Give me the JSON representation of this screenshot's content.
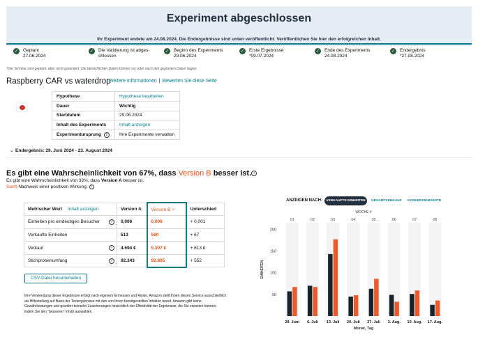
{
  "banner": {
    "title": "Experiment abgeschlossen",
    "subtitle": "Ihr Experiment endete am 24.08.2024. Die Endergebnisse sind unten veröffentlicht. Veröffentlichen Sie hier den erfolgreichen Inhalt."
  },
  "steps": [
    {
      "title": "Geplant",
      "date": "27.06.2024"
    },
    {
      "title": "Die Validierung ist abges-",
      "date": "chlossen"
    },
    {
      "title": "Beginn des Experiments",
      "date": "29.06.2024"
    },
    {
      "title": "Erste Ergebnisse",
      "date": "*09.07.2024"
    },
    {
      "title": "Ende des Experiments",
      "date": "24.08.2024"
    },
    {
      "title": "Endergebnis",
      "date": "*27.08.2024"
    }
  ],
  "note": "*Die Termine sind geplant, aber nicht garantiert. Die tatsächlichen Daten können vor oder nach den geplanten Daten liegen.",
  "experiment": {
    "title": "Raspberry CAR vs waterdrop",
    "link_more": "Weitere Informationen",
    "link_rate": "Bewerten Sie diese Seite"
  },
  "info_table": [
    {
      "key": "Hypothese",
      "value": "Hypothese bearbeiten",
      "is_link": true
    },
    {
      "key": "Dauer",
      "value": "Wichtig",
      "is_link": false
    },
    {
      "key": "Startdatum",
      "value": "29.06.2024",
      "is_link": false
    },
    {
      "key": "Inhalt des Experiments",
      "value": "Inhalt anzeigen",
      "is_link": true
    },
    {
      "key": "Experimentursprung",
      "value": "Ihre Experimente verwalten",
      "is_link": false
    }
  ],
  "final_range": "Endergebnis: 29. Juni 2024 - 23. August 2024",
  "probability": {
    "head_prefix": "Es gibt eine Wahrscheinlichkeit von 67%, dass ",
    "head_version": "Version B",
    "head_suffix": " besser ist.",
    "sub_prefix": "Es gibt eine Wahrscheinlichkeit von 33%, dass ",
    "sub_version": "Version A",
    "sub_suffix": " besser ist.",
    "sub2_soft": "Sanft",
    "sub2_rest": "-Nachweis einer positiven Wirkung."
  },
  "metrics": {
    "header": {
      "metric": "Metrischer Wert",
      "show": "Inhalt anzeigen",
      "a": "Version A",
      "b": "Version B",
      "diff": "Unterschied"
    },
    "rows": [
      {
        "name": "Einheiten pro eindeutigen Besucher",
        "a": "0,006",
        "b": "0,006",
        "diff": "+ 0,001"
      },
      {
        "name": "Verkaufte Einheiten",
        "a": "513",
        "b": "580",
        "diff": "+ 67"
      },
      {
        "name": "Verkauf",
        "a": "4.694 €",
        "b": "5.307 €",
        "diff": "+ 613 €"
      },
      {
        "name": "Stichprobenumfang",
        "a": "92.343",
        "b": "92.895",
        "diff": "+ 552"
      }
    ]
  },
  "csv_button": "CSV-Datei herunterladen",
  "disclaimer": "Ihre Verwendung dieser Ergebnisse erfolgt nach eigenem Ermessen und Risiko. Amazon stellt Ihnen diesen Service ausschließlich als Hilfestellung auf Basis der Testergebnisse mit den von Ihnen bereitgestellten Inhalten bereit. Amazon gibt keine Gewährleistungen und gewährt keinerlei Zusicherungen hinsichtlich der Effektivität der Ergebnisse, die Sie erwarten können, indem Sie den \"besseren\" Inhalt auswählen.",
  "chart_controls": {
    "label": "ANZEIGEN NACH:",
    "options": [
      "VERKAUFTE EINHEITEN",
      "GESAMTVERKAUF",
      "KONVERSIONSRATE"
    ],
    "active": "VERKAUFTE EINHEITEN"
  },
  "colors": {
    "version_a": "#17252b",
    "version_b": "#ea5a2c",
    "accent": "#067d8e"
  },
  "chart_data": {
    "type": "bar",
    "top_axis_label": "WOCHE #",
    "weeks": [
      "01",
      "02",
      "03",
      "04",
      "05",
      "06",
      "07",
      "08"
    ],
    "categories": [
      "29. Juni",
      "6. Juli",
      "13. Juli",
      "20. Juli",
      "27. Juli",
      "3. Aug.",
      "10. Aug.",
      "17. Aug."
    ],
    "series": [
      {
        "values": [
          57,
          70,
          143,
          45,
          63,
          49,
          51,
          26
        ]
      },
      {
        "values": [
          67,
          67,
          177,
          48,
          86,
          33,
          59,
          36
        ]
      }
    ],
    "ylabel": "EINHEITEN",
    "xlabel": "Monat, Tag",
    "yticks": [
      50,
      100,
      150,
      200
    ],
    "ylim": [
      0,
      215
    ],
    "grid": false
  }
}
